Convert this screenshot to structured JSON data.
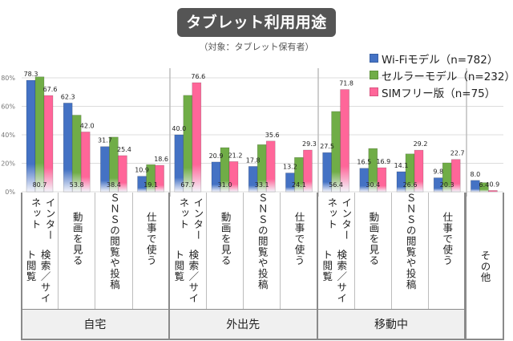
{
  "header": {
    "title": "タブレット利用用途",
    "subtitle": "（対象：タブレット保有者）"
  },
  "legend": [
    {
      "label": "Wi-Fiモデル（n=782）",
      "color": "#4472c4"
    },
    {
      "label": "セルラーモデル（n=232）",
      "color": "#70ad47"
    },
    {
      "label": "SIMフリー版（n=75）",
      "color": "#ff6699"
    }
  ],
  "chart_data": {
    "type": "bar",
    "title": "タブレット利用用途",
    "subtitle": "（対象：タブレット保有者）",
    "xlabel": "",
    "ylabel": "",
    "ylim": [
      0,
      80
    ],
    "yticks": [
      "0%",
      "20%",
      "40%",
      "60%",
      "80%"
    ],
    "ytick_values": [
      0,
      20,
      40,
      60,
      80
    ],
    "grid": true,
    "legend_position": "top-right",
    "groups": [
      "自宅",
      "外出先",
      "移動中"
    ],
    "categories": [
      {
        "label": "インターネット検索／サイト閲覧",
        "group": "自宅"
      },
      {
        "label": "動画を見る",
        "group": "自宅"
      },
      {
        "label": "ＳＮＳの閲覧や投稿",
        "group": "自宅"
      },
      {
        "label": "仕事で使う",
        "group": "自宅"
      },
      {
        "label": "インターネット検索／サイト閲覧",
        "group": "外出先"
      },
      {
        "label": "動画を見る",
        "group": "外出先"
      },
      {
        "label": "ＳＮＳの閲覧や投稿",
        "group": "外出先"
      },
      {
        "label": "仕事で使う",
        "group": "外出先"
      },
      {
        "label": "インターネット検索／サイト閲覧",
        "group": "移動中"
      },
      {
        "label": "動画を見る",
        "group": "移動中"
      },
      {
        "label": "ＳＮＳの閲覧や投稿",
        "group": "移動中"
      },
      {
        "label": "仕事で使う",
        "group": "移動中"
      },
      {
        "label": "その他",
        "group": ""
      }
    ],
    "series": [
      {
        "name": "Wi-Fiモデル（n=782）",
        "color": "#4472c4",
        "values": [
          78.3,
          62.3,
          31.7,
          10.9,
          40.0,
          20.9,
          17.8,
          13.2,
          27.5,
          16.5,
          14.1,
          9.8,
          8.0
        ]
      },
      {
        "name": "セルラーモデル（n=232）",
        "color": "#70ad47",
        "values": [
          80.7,
          53.8,
          38.4,
          19.1,
          67.7,
          31.0,
          33.1,
          24.1,
          56.4,
          30.4,
          26.6,
          20.3,
          6.4
        ]
      },
      {
        "name": "SIMフリー版（n=75）",
        "color": "#ff6699",
        "values": [
          67.6,
          42.0,
          25.4,
          18.6,
          76.6,
          21.2,
          35.6,
          29.3,
          71.8,
          16.9,
          29.2,
          22.7,
          0.9
        ]
      }
    ]
  },
  "table": {
    "cat_labels": [
      [
        "インターネット",
        "検索／サイト閲覧"
      ],
      [
        "動画を見る"
      ],
      [
        "ＳＮＳの閲覧や投稿"
      ],
      [
        "仕事で使う"
      ],
      [
        "インターネット",
        "検索／サイト閲覧"
      ],
      [
        "動画を見る"
      ],
      [
        "ＳＮＳの閲覧や投稿"
      ],
      [
        "仕事で使う"
      ],
      [
        "インターネット",
        "検索／サイト閲覧"
      ],
      [
        "動画を見る"
      ],
      [
        "ＳＮＳの閲覧や投稿"
      ],
      [
        "仕事で使う"
      ],
      [
        "その他"
      ]
    ],
    "groups": [
      "自宅",
      "外出先",
      "移動中"
    ]
  }
}
